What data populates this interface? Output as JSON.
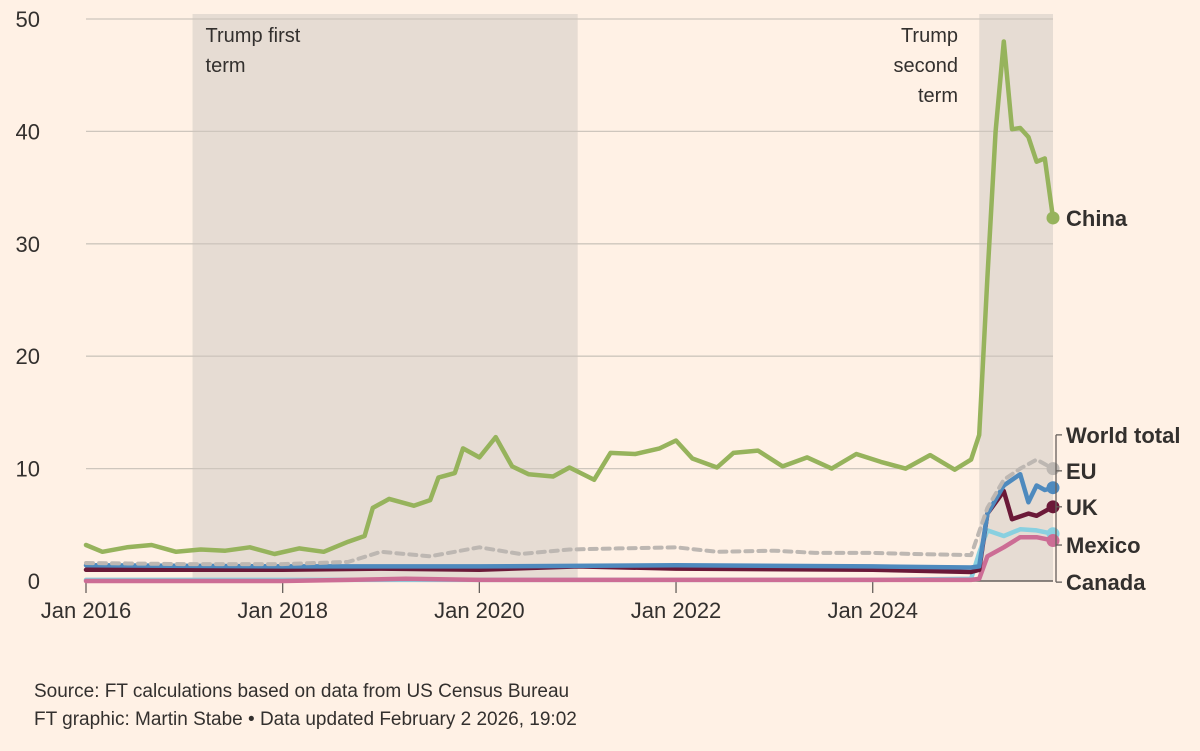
{
  "chart_data": {
    "type": "line",
    "x_start": "2016-01",
    "x_end": "2025-11",
    "ylim": [
      0,
      50
    ],
    "y_ticks": [
      0,
      10,
      20,
      30,
      40,
      50
    ],
    "x_ticks": [
      {
        "date": "2016-01",
        "label": "Jan 2016"
      },
      {
        "date": "2018-01",
        "label": "Jan 2018"
      },
      {
        "date": "2020-01",
        "label": "Jan 2020"
      },
      {
        "date": "2022-01",
        "label": "Jan 2022"
      },
      {
        "date": "2024-01",
        "label": "Jan 2024"
      }
    ],
    "grid": true,
    "shaded_periods": [
      {
        "start": "2017-02",
        "end": "2021-01",
        "label": [
          "Trump first",
          "term"
        ],
        "label_align": "left"
      },
      {
        "start": "2025-02",
        "end": "2025-11",
        "label": [
          "Trump",
          "second",
          "term"
        ],
        "label_align": "right"
      }
    ],
    "series": [
      {
        "name": "China",
        "color": "#96b35c",
        "dashed": false,
        "label_y": 32.3,
        "points": [
          [
            "2016-01",
            3.2
          ],
          [
            "2016-03",
            2.6
          ],
          [
            "2016-06",
            3.0
          ],
          [
            "2016-09",
            3.2
          ],
          [
            "2016-12",
            2.6
          ],
          [
            "2017-03",
            2.8
          ],
          [
            "2017-06",
            2.7
          ],
          [
            "2017-09",
            3.0
          ],
          [
            "2017-12",
            2.4
          ],
          [
            "2018-03",
            2.9
          ],
          [
            "2018-06",
            2.6
          ],
          [
            "2018-09",
            3.5
          ],
          [
            "2018-11",
            4.0
          ],
          [
            "2018-12",
            6.5
          ],
          [
            "2019-02",
            7.3
          ],
          [
            "2019-05",
            6.7
          ],
          [
            "2019-07",
            7.2
          ],
          [
            "2019-08",
            9.2
          ],
          [
            "2019-10",
            9.6
          ],
          [
            "2019-11",
            11.8
          ],
          [
            "2020-01",
            11.0
          ],
          [
            "2020-03",
            12.8
          ],
          [
            "2020-05",
            10.2
          ],
          [
            "2020-07",
            9.5
          ],
          [
            "2020-10",
            9.3
          ],
          [
            "2020-12",
            10.1
          ],
          [
            "2021-03",
            9.0
          ],
          [
            "2021-05",
            11.4
          ],
          [
            "2021-08",
            11.3
          ],
          [
            "2021-11",
            11.8
          ],
          [
            "2022-01",
            12.5
          ],
          [
            "2022-03",
            10.9
          ],
          [
            "2022-06",
            10.1
          ],
          [
            "2022-08",
            11.4
          ],
          [
            "2022-11",
            11.6
          ],
          [
            "2023-02",
            10.2
          ],
          [
            "2023-05",
            11.0
          ],
          [
            "2023-08",
            10.0
          ],
          [
            "2023-11",
            11.3
          ],
          [
            "2024-02",
            10.6
          ],
          [
            "2024-05",
            10.0
          ],
          [
            "2024-08",
            11.2
          ],
          [
            "2024-11",
            9.9
          ],
          [
            "2025-01",
            10.8
          ],
          [
            "2025-02",
            13.0
          ],
          [
            "2025-03",
            27.0
          ],
          [
            "2025-04",
            40.0
          ],
          [
            "2025-05",
            48.0
          ],
          [
            "2025-06",
            40.2
          ],
          [
            "2025-07",
            40.3
          ],
          [
            "2025-08",
            39.5
          ],
          [
            "2025-09",
            37.3
          ],
          [
            "2025-10",
            37.6
          ],
          [
            "2025-11",
            32.3
          ]
        ]
      },
      {
        "name": "World total",
        "color": "#bdb7b2",
        "dashed": true,
        "label_y": 13.0,
        "points": [
          [
            "2016-01",
            1.6
          ],
          [
            "2017-01",
            1.5
          ],
          [
            "2018-01",
            1.5
          ],
          [
            "2018-09",
            1.7
          ],
          [
            "2019-01",
            2.6
          ],
          [
            "2019-07",
            2.2
          ],
          [
            "2020-01",
            3.0
          ],
          [
            "2020-06",
            2.4
          ],
          [
            "2020-12",
            2.8
          ],
          [
            "2021-06",
            2.9
          ],
          [
            "2022-01",
            3.0
          ],
          [
            "2022-06",
            2.6
          ],
          [
            "2023-01",
            2.7
          ],
          [
            "2023-06",
            2.5
          ],
          [
            "2024-01",
            2.5
          ],
          [
            "2024-06",
            2.4
          ],
          [
            "2025-01",
            2.3
          ],
          [
            "2025-03",
            6.5
          ],
          [
            "2025-05",
            9.0
          ],
          [
            "2025-07",
            10.0
          ],
          [
            "2025-09",
            10.8
          ],
          [
            "2025-11",
            10.0
          ]
        ]
      },
      {
        "name": "EU",
        "color": "#4e8abe",
        "dashed": false,
        "label_y": 9.8,
        "points": [
          [
            "2016-01",
            1.4
          ],
          [
            "2018-01",
            1.3
          ],
          [
            "2020-01",
            1.3
          ],
          [
            "2022-01",
            1.4
          ],
          [
            "2024-01",
            1.3
          ],
          [
            "2025-01",
            1.2
          ],
          [
            "2025-02",
            1.3
          ],
          [
            "2025-03",
            6.0
          ],
          [
            "2025-05",
            8.5
          ],
          [
            "2025-07",
            9.5
          ],
          [
            "2025-08",
            7.0
          ],
          [
            "2025-09",
            8.5
          ],
          [
            "2025-10",
            8.1
          ],
          [
            "2025-11",
            8.3
          ]
        ]
      },
      {
        "name": "UK",
        "color": "#6b1938",
        "dashed": false,
        "label_y": 6.6,
        "points": [
          [
            "2016-01",
            1.0
          ],
          [
            "2018-01",
            1.0
          ],
          [
            "2019-01",
            1.1
          ],
          [
            "2020-01",
            1.0
          ],
          [
            "2021-01",
            1.3
          ],
          [
            "2022-01",
            1.1
          ],
          [
            "2024-01",
            1.0
          ],
          [
            "2025-01",
            0.8
          ],
          [
            "2025-02",
            1.0
          ],
          [
            "2025-03",
            6.0
          ],
          [
            "2025-05",
            8.0
          ],
          [
            "2025-06",
            5.5
          ],
          [
            "2025-08",
            6.0
          ],
          [
            "2025-09",
            5.8
          ],
          [
            "2025-11",
            6.6
          ]
        ]
      },
      {
        "name": "Mexico",
        "color": "#cc6d95",
        "dashed": false,
        "label_y": 3.2,
        "points": [
          [
            "2016-01",
            0.0
          ],
          [
            "2018-01",
            0.0
          ],
          [
            "2018-09",
            0.1
          ],
          [
            "2019-04",
            0.2
          ],
          [
            "2020-01",
            0.1
          ],
          [
            "2022-01",
            0.1
          ],
          [
            "2024-01",
            0.1
          ],
          [
            "2025-01",
            0.1
          ],
          [
            "2025-02",
            0.2
          ],
          [
            "2025-03",
            2.2
          ],
          [
            "2025-05",
            3.0
          ],
          [
            "2025-07",
            3.9
          ],
          [
            "2025-09",
            3.9
          ],
          [
            "2025-11",
            3.6
          ]
        ]
      },
      {
        "name": "Canada",
        "color": "#89d0e0",
        "dashed": false,
        "label_y": -0.1,
        "points": [
          [
            "2016-01",
            0.1
          ],
          [
            "2018-01",
            0.1
          ],
          [
            "2020-01",
            0.1
          ],
          [
            "2022-01",
            0.1
          ],
          [
            "2024-01",
            0.1
          ],
          [
            "2025-01",
            0.2
          ],
          [
            "2025-02",
            2.5
          ],
          [
            "2025-03",
            4.5
          ],
          [
            "2025-05",
            4.0
          ],
          [
            "2025-07",
            4.6
          ],
          [
            "2025-09",
            4.5
          ],
          [
            "2025-11",
            4.2
          ]
        ]
      }
    ]
  },
  "footer": {
    "source": "Source: FT calculations based on data from US Census Bureau",
    "credit": "FT graphic: Martin Stabe • Data updated February 2 2026, 19:02"
  }
}
